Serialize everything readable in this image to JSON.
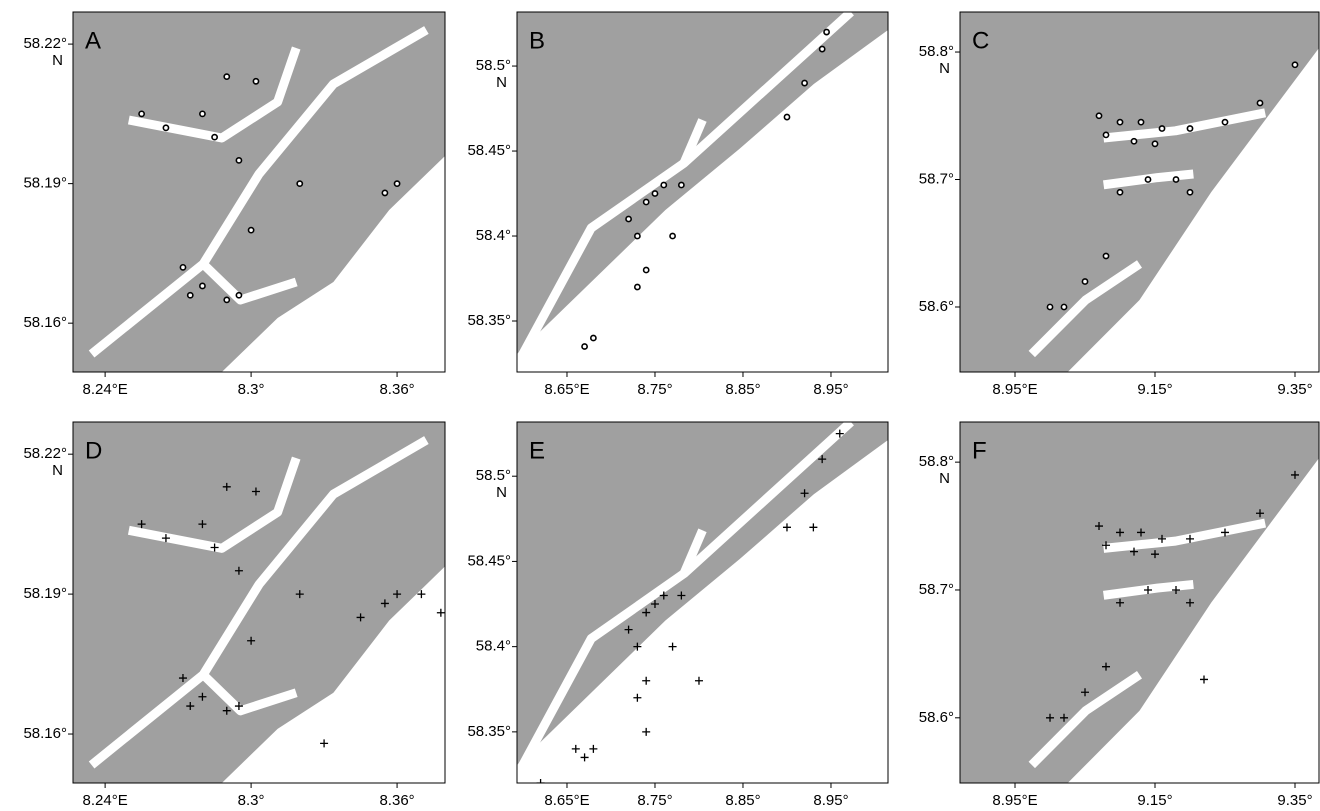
{
  "panels": [
    {
      "label": "A",
      "marker": "circle",
      "ylabel": "N",
      "xlim": [
        8.2268,
        8.3797
      ],
      "ylim": [
        58.1495,
        58.2269
      ],
      "xticks": [
        {
          "value": 8.24,
          "label": "8.24°E"
        },
        {
          "value": 8.3,
          "label": "8.3°"
        },
        {
          "value": 8.36,
          "label": "8.36°"
        }
      ],
      "yticks": [
        {
          "value": 58.22,
          "label": "58.22°"
        },
        {
          "value": 58.19,
          "label": "58.19°"
        },
        {
          "value": 58.16,
          "label": "58.16°"
        }
      ],
      "lon": [
        8.275,
        8.28,
        8.29,
        8.295,
        8.272,
        8.3,
        8.295,
        8.285,
        8.28,
        8.265,
        8.255,
        8.32,
        8.355,
        8.36,
        8.302,
        8.29
      ],
      "lat": [
        58.166,
        58.168,
        58.165,
        58.166,
        58.172,
        58.18,
        58.195,
        58.2,
        58.205,
        58.202,
        58.205,
        58.19,
        58.188,
        58.19,
        58.212,
        58.213
      ]
    },
    {
      "label": "B",
      "marker": "circle",
      "ylabel": "N",
      "xlim": [
        8.5932,
        9.0148
      ],
      "ylim": [
        58.32,
        58.5318
      ],
      "xticks": [
        {
          "value": 8.65,
          "label": "8.65°E"
        },
        {
          "value": 8.75,
          "label": "8.75°"
        },
        {
          "value": 8.85,
          "label": "8.85°"
        },
        {
          "value": 8.95,
          "label": "8.95°"
        }
      ],
      "yticks": [
        {
          "value": 58.5,
          "label": "58.5°"
        },
        {
          "value": 58.45,
          "label": "58.45°"
        },
        {
          "value": 58.4,
          "label": "58.4°"
        },
        {
          "value": 58.35,
          "label": "58.35°"
        }
      ],
      "lon": [
        8.73,
        8.72,
        8.74,
        8.75,
        8.76,
        8.78,
        8.74,
        8.73,
        8.77,
        8.68,
        8.67,
        8.9,
        8.92,
        8.94,
        8.945
      ],
      "lat": [
        58.4,
        58.41,
        58.42,
        58.425,
        58.43,
        58.43,
        58.38,
        58.37,
        58.4,
        58.34,
        58.335,
        58.47,
        58.49,
        58.51,
        58.52
      ]
    },
    {
      "label": "C",
      "marker": "circle",
      "ylabel": "N",
      "xlim": [
        8.8714,
        9.3843
      ],
      "ylim": [
        58.549,
        58.8314
      ],
      "xticks": [
        {
          "value": 8.95,
          "label": "8.95°E"
        },
        {
          "value": 9.15,
          "label": "9.15°"
        },
        {
          "value": 9.35,
          "label": "9.35°"
        }
      ],
      "yticks": [
        {
          "value": 58.8,
          "label": "58.8°"
        },
        {
          "value": 58.7,
          "label": "58.7°"
        },
        {
          "value": 58.6,
          "label": "58.6°"
        }
      ],
      "lon": [
        9.07,
        9.1,
        9.13,
        9.16,
        9.2,
        9.25,
        9.3,
        9.35,
        9.08,
        9.12,
        9.15,
        9.14,
        9.18,
        9.2,
        9.1,
        9.08,
        9.05,
        9.02,
        9.0
      ],
      "lat": [
        58.75,
        58.745,
        58.745,
        58.74,
        58.74,
        58.745,
        58.76,
        58.79,
        58.735,
        58.73,
        58.728,
        58.7,
        58.7,
        58.69,
        58.69,
        58.64,
        58.62,
        58.6,
        58.6
      ]
    },
    {
      "label": "D",
      "marker": "plus",
      "ylabel": "N",
      "xlim": [
        8.2268,
        8.3797
      ],
      "ylim": [
        58.1495,
        58.2269
      ],
      "xticks": [
        {
          "value": 8.24,
          "label": "8.24°E"
        },
        {
          "value": 8.3,
          "label": "8.3°"
        },
        {
          "value": 8.36,
          "label": "8.36°"
        }
      ],
      "yticks": [
        {
          "value": 58.22,
          "label": "58.22°"
        },
        {
          "value": 58.19,
          "label": "58.19°"
        },
        {
          "value": 58.16,
          "label": "58.16°"
        }
      ],
      "lon": [
        8.275,
        8.28,
        8.29,
        8.295,
        8.272,
        8.3,
        8.295,
        8.285,
        8.28,
        8.265,
        8.255,
        8.32,
        8.355,
        8.36,
        8.302,
        8.29,
        8.33,
        8.37,
        8.378,
        8.345
      ],
      "lat": [
        58.166,
        58.168,
        58.165,
        58.166,
        58.172,
        58.18,
        58.195,
        58.2,
        58.205,
        58.202,
        58.205,
        58.19,
        58.188,
        58.19,
        58.212,
        58.213,
        58.158,
        58.19,
        58.186,
        58.185
      ]
    },
    {
      "label": "E",
      "marker": "plus",
      "ylabel": "N",
      "xlim": [
        8.5932,
        9.0148
      ],
      "ylim": [
        58.32,
        58.5318
      ],
      "xticks": [
        {
          "value": 8.65,
          "label": "8.65°E"
        },
        {
          "value": 8.75,
          "label": "8.75°"
        },
        {
          "value": 8.85,
          "label": "8.85°"
        },
        {
          "value": 8.95,
          "label": "8.95°"
        }
      ],
      "yticks": [
        {
          "value": 58.5,
          "label": "58.5°"
        },
        {
          "value": 58.45,
          "label": "58.45°"
        },
        {
          "value": 58.4,
          "label": "58.4°"
        },
        {
          "value": 58.35,
          "label": "58.35°"
        }
      ],
      "lon": [
        8.73,
        8.72,
        8.74,
        8.75,
        8.76,
        8.78,
        8.74,
        8.73,
        8.77,
        8.68,
        8.67,
        8.9,
        8.92,
        8.94,
        8.8,
        8.74,
        8.66,
        8.62,
        8.93,
        8.96
      ],
      "lat": [
        58.4,
        58.41,
        58.42,
        58.425,
        58.43,
        58.43,
        58.38,
        58.37,
        58.4,
        58.34,
        58.335,
        58.47,
        58.49,
        58.51,
        58.38,
        58.35,
        58.34,
        58.32,
        58.47,
        58.525
      ]
    },
    {
      "label": "F",
      "marker": "plus",
      "ylabel": "N",
      "xlim": [
        8.8714,
        9.3843
      ],
      "ylim": [
        58.549,
        58.8314
      ],
      "xticks": [
        {
          "value": 8.95,
          "label": "8.95°E"
        },
        {
          "value": 9.15,
          "label": "9.15°"
        },
        {
          "value": 9.35,
          "label": "9.35°"
        }
      ],
      "yticks": [
        {
          "value": 58.8,
          "label": "58.8°"
        },
        {
          "value": 58.7,
          "label": "58.7°"
        },
        {
          "value": 58.6,
          "label": "58.6°"
        }
      ],
      "lon": [
        9.07,
        9.1,
        9.13,
        9.16,
        9.2,
        9.25,
        9.3,
        9.35,
        9.08,
        9.12,
        9.15,
        9.14,
        9.18,
        9.2,
        9.1,
        9.08,
        9.05,
        9.02,
        9.0,
        9.22
      ],
      "lat": [
        58.75,
        58.745,
        58.745,
        58.74,
        58.74,
        58.745,
        58.76,
        58.79,
        58.735,
        58.73,
        58.728,
        58.7,
        58.7,
        58.69,
        58.69,
        58.64,
        58.62,
        58.6,
        58.6,
        58.63
      ]
    }
  ]
}
